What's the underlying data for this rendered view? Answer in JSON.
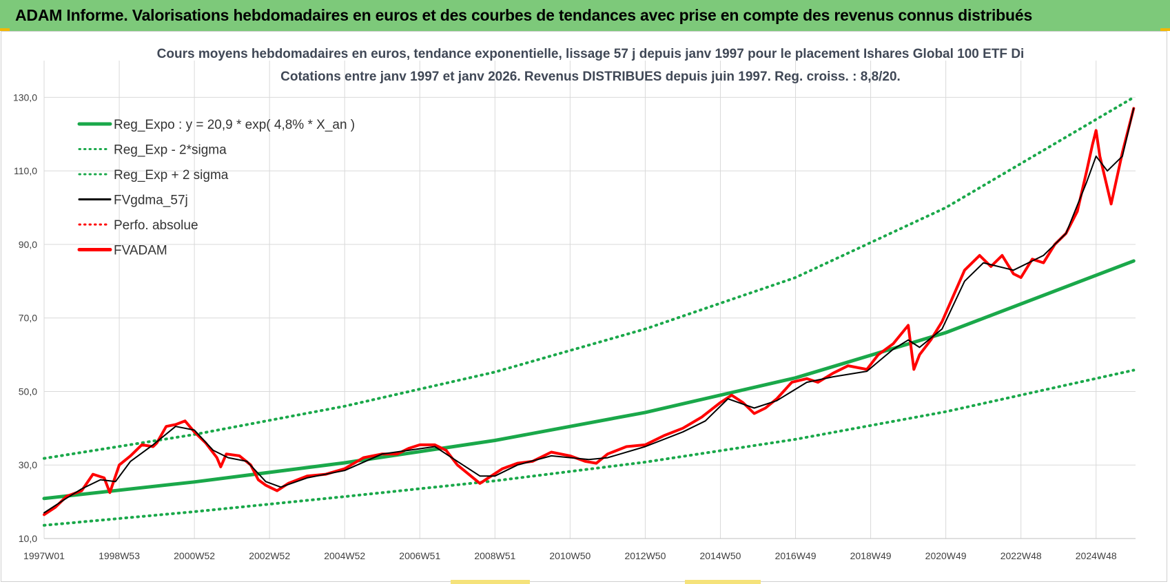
{
  "page": {
    "banner_title": "ADAM Informe. Valorisations hebdomadaires en euros et des courbes de tendances avec prise en compte des revenus connus distribués"
  },
  "colors": {
    "banner": "#7dc97a",
    "reg_green": "#1aa84a",
    "fvadam_red": "#ff0000",
    "fvgdma_black": "#000000",
    "grid": "#d9d9d9"
  },
  "chart_data": {
    "type": "line",
    "title": "Cours moyens hebdomadaires en euros, tendance exponentielle, lissage 57 j depuis janv 1997  pour le placement Ishares Global 100 ETF Di",
    "subtitle": "Cotations entre janv 1997 et janv 2026. Revenus DISTRIBUES depuis juin 1997. Reg. croiss. : 8,8/20.",
    "xlabel": "",
    "ylabel": "",
    "ylim": [
      10,
      140
    ],
    "yticks": [
      10,
      30,
      50,
      70,
      90,
      110,
      130
    ],
    "ytick_labels": [
      "10,0",
      "30,0",
      "50,0",
      "70,0",
      "90,0",
      "110,0",
      "130,0"
    ],
    "xlim": [
      1997.0,
      2026.05
    ],
    "xticks": [
      1997.0,
      1999.0,
      2001.0,
      2003.0,
      2005.0,
      2007.0,
      2009.0,
      2011.0,
      2013.0,
      2015.0,
      2017.0,
      2019.0,
      2021.0,
      2023.0,
      2025.0
    ],
    "xtick_labels": [
      "1997W01",
      "1998W53",
      "2000W52",
      "2002W52",
      "2004W52",
      "2006W51",
      "2008W51",
      "2010W50",
      "2012W50",
      "2014W50",
      "2016W49",
      "2018W49",
      "2020W49",
      "2022W48",
      "2024W48"
    ],
    "grid": true,
    "legend_position": "top-left",
    "legend": [
      {
        "label": "Reg_Expo : y = 20,9 * exp( 4,8% *  X_an )",
        "style": "solid-thick",
        "color": "#1aa84a"
      },
      {
        "label": "Reg_Exp - 2*sigma",
        "style": "dotted",
        "color": "#1aa84a"
      },
      {
        "label": "Reg_Exp + 2 sigma",
        "style": "dotted",
        "color": "#1aa84a"
      },
      {
        "label": "FVgdma_57j",
        "style": "solid",
        "color": "#000000"
      },
      {
        "label": "Perfo. absolue",
        "style": "dotted",
        "color": "#ff0000"
      },
      {
        "label": "FVADAM",
        "style": "solid-thick",
        "color": "#ff0000"
      }
    ],
    "series": [
      {
        "name": "Reg_Expo : y = 20,9 * exp( 4,8% *  X_an )",
        "x": [
          1997.0,
          2001.0,
          2005.0,
          2009.0,
          2013.0,
          2017.0,
          2021.0,
          2026.0
        ],
        "values": [
          20.9,
          25.4,
          30.6,
          36.7,
          44.3,
          53.7,
          66.0,
          85.5
        ]
      },
      {
        "name": "Reg_Exp - 2*sigma",
        "x": [
          1997.0,
          2001.0,
          2005.0,
          2009.0,
          2013.0,
          2017.0,
          2021.0,
          2026.0
        ],
        "values": [
          13.6,
          17.3,
          21.4,
          25.7,
          30.8,
          37.0,
          44.5,
          55.8
        ]
      },
      {
        "name": "Reg_Exp + 2 sigma",
        "x": [
          1997.0,
          2001.0,
          2005.0,
          2009.0,
          2013.0,
          2017.0,
          2021.0,
          2026.0
        ],
        "values": [
          31.8,
          38.3,
          46.0,
          55.3,
          67.0,
          81.0,
          100.0,
          130.0
        ]
      },
      {
        "name": "FVADAM",
        "x": [
          1997.0,
          1997.3,
          1997.6,
          1998.0,
          1998.3,
          1998.6,
          1998.75,
          1999.0,
          1999.3,
          1999.6,
          1999.9,
          2000.0,
          2000.25,
          2000.5,
          2000.75,
          2001.0,
          2001.3,
          2001.6,
          2001.7,
          2001.85,
          2002.2,
          2002.5,
          2002.7,
          2002.9,
          2003.0,
          2003.2,
          2003.5,
          2004.0,
          2004.5,
          2005.0,
          2005.5,
          2006.0,
          2006.4,
          2006.7,
          2007.0,
          2007.4,
          2007.7,
          2008.0,
          2008.3,
          2008.6,
          2008.9,
          2009.2,
          2009.6,
          2010.0,
          2010.5,
          2011.0,
          2011.4,
          2011.7,
          2012.0,
          2012.5,
          2013.0,
          2013.5,
          2014.0,
          2014.5,
          2015.0,
          2015.3,
          2015.6,
          2015.9,
          2016.2,
          2016.5,
          2016.9,
          2017.3,
          2017.6,
          2018.0,
          2018.4,
          2018.9,
          2019.2,
          2019.6,
          2020.0,
          2020.15,
          2020.3,
          2020.6,
          2020.9,
          2021.2,
          2021.5,
          2021.9,
          2022.2,
          2022.5,
          2022.8,
          2023.0,
          2023.3,
          2023.6,
          2023.9,
          2024.2,
          2024.5,
          2024.75,
          2024.9,
          2025.0,
          2025.1,
          2025.4,
          2025.7,
          2026.0
        ],
        "values": [
          16.5,
          18.5,
          21.5,
          23.0,
          27.5,
          26.5,
          22.5,
          30.0,
          32.5,
          35.5,
          35.0,
          36.0,
          40.5,
          41.0,
          42.0,
          39.0,
          36.0,
          32.0,
          29.5,
          33.0,
          32.5,
          30.0,
          26.0,
          24.5,
          24.0,
          23.0,
          25.0,
          27.0,
          27.5,
          29.0,
          32.0,
          33.0,
          33.0,
          34.5,
          35.5,
          35.5,
          34.0,
          30.0,
          27.5,
          25.0,
          27.0,
          29.0,
          30.5,
          31.0,
          33.5,
          32.5,
          31.0,
          30.5,
          33.0,
          35.0,
          35.5,
          38.0,
          40.0,
          43.0,
          47.0,
          49.0,
          47.0,
          44.0,
          45.5,
          48.0,
          52.5,
          53.5,
          52.5,
          55.0,
          57.0,
          56.0,
          60.0,
          63.0,
          68.0,
          56.0,
          60.0,
          64.0,
          69.0,
          76.0,
          83.0,
          87.0,
          84.0,
          87.0,
          82.0,
          81.0,
          86.0,
          85.0,
          90.0,
          93.0,
          99.0,
          110.0,
          117.0,
          121.0,
          114.0,
          101.0,
          115.0,
          127.0
        ]
      },
      {
        "name": "FVgdma_57j",
        "x": [
          1997.0,
          1997.6,
          1998.0,
          1998.5,
          1998.9,
          1999.3,
          1999.9,
          2000.5,
          2001.0,
          2001.5,
          2001.9,
          2002.4,
          2002.9,
          2003.3,
          2004.0,
          2005.0,
          2006.0,
          2006.7,
          2007.4,
          2008.0,
          2008.6,
          2009.0,
          2009.6,
          2010.5,
          2011.5,
          2012.0,
          2013.0,
          2014.0,
          2014.6,
          2015.2,
          2015.9,
          2016.5,
          2017.3,
          2018.0,
          2018.9,
          2019.6,
          2020.0,
          2020.3,
          2020.9,
          2021.5,
          2022.0,
          2022.8,
          2023.6,
          2024.2,
          2024.75,
          2025.0,
          2025.3,
          2025.7,
          2026.0
        ],
        "values": [
          17.0,
          21.0,
          23.5,
          26.0,
          25.5,
          31.0,
          35.5,
          40.5,
          39.5,
          34.0,
          32.0,
          31.0,
          25.5,
          24.0,
          26.5,
          28.5,
          33.0,
          34.0,
          35.0,
          31.0,
          27.0,
          27.0,
          30.0,
          32.5,
          31.5,
          32.0,
          35.0,
          39.0,
          42.0,
          48.0,
          45.5,
          47.5,
          52.5,
          54.0,
          55.5,
          61.5,
          64.0,
          62.0,
          67.0,
          80.0,
          85.0,
          83.0,
          87.0,
          93.0,
          107.0,
          114.0,
          110.0,
          114.0,
          127.0
        ]
      }
    ]
  }
}
